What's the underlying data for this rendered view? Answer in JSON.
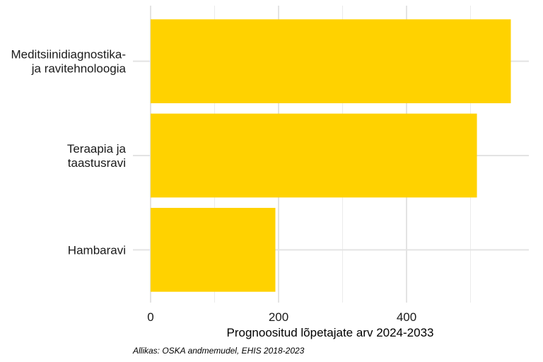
{
  "chart_data": {
    "type": "bar",
    "orientation": "horizontal",
    "categories": [
      [
        "Meditsiinidiagnostika-",
        "ja ravitehnoloogia"
      ],
      [
        "Teraapia ja",
        "taastusravi"
      ],
      [
        "Hambaravi"
      ]
    ],
    "values": [
      563,
      510,
      195
    ],
    "xlabel": "Prognoositud lõpetajate arv 2024-2033",
    "xticks": [
      "0",
      "200",
      "400"
    ],
    "xlim": [
      0,
      590
    ],
    "grid": true,
    "bar_color": "#FFD200",
    "caption": "Allikas: OSKA andmemudel, EHIS 2018-2023"
  }
}
